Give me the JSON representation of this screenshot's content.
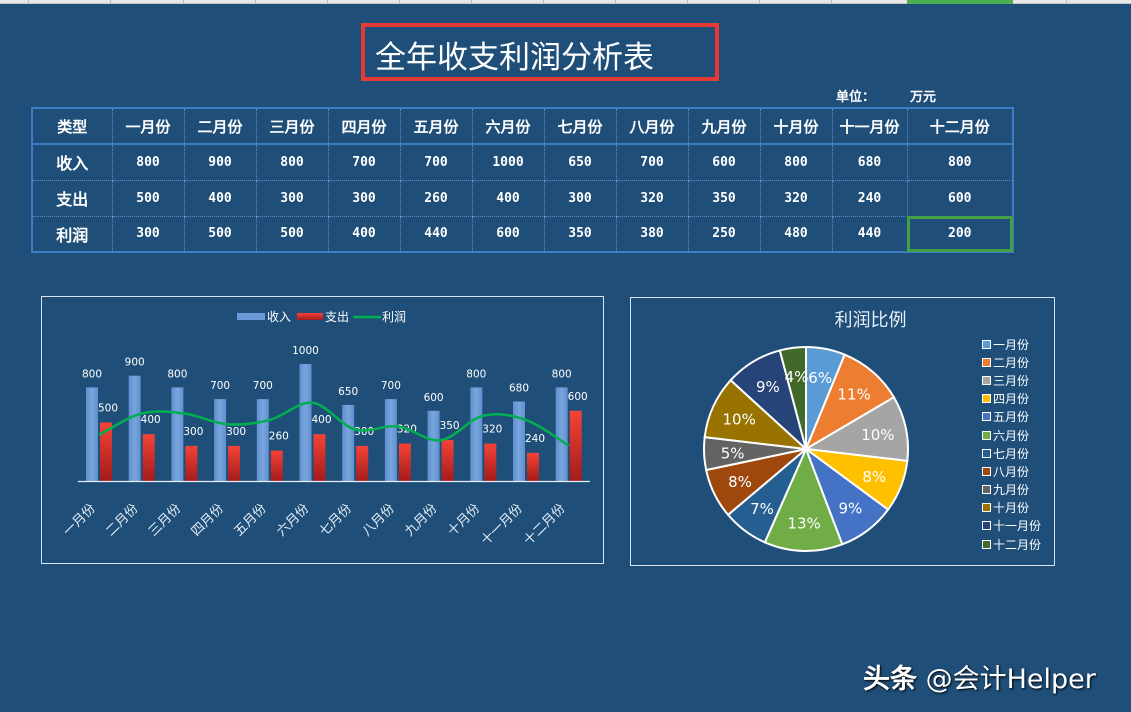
{
  "page": {
    "title": "全年收支利润分析表",
    "unit_label": "单位：",
    "unit_value": "万元",
    "watermark_brand": "头条",
    "watermark_handle": "@会计Helper"
  },
  "table": {
    "header": [
      "类型",
      "一月份",
      "二月份",
      "三月份",
      "四月份",
      "五月份",
      "六月份",
      "七月份",
      "八月份",
      "九月份",
      "十月份",
      "十一月份",
      "十二月份"
    ],
    "rows": [
      {
        "label": "收入",
        "values": [
          "800",
          "900",
          "800",
          "700",
          "700",
          "1000",
          "650",
          "700",
          "600",
          "800",
          "680",
          "800"
        ]
      },
      {
        "label": "支出",
        "values": [
          "500",
          "400",
          "300",
          "300",
          "260",
          "400",
          "300",
          "320",
          "350",
          "320",
          "240",
          "600"
        ]
      },
      {
        "label": "利润",
        "values": [
          "300",
          "500",
          "500",
          "400",
          "440",
          "600",
          "350",
          "380",
          "250",
          "480",
          "440",
          "200"
        ]
      }
    ],
    "active_cell": "利润-十二月份"
  },
  "colors": {
    "background": "#1f4e79",
    "income_bar": "#6a9bd8",
    "expense_bar": "#e53935",
    "profit_line": "#00b050",
    "title_border": "#e53935",
    "selection": "#43a047"
  },
  "chart_data": [
    {
      "type": "bar",
      "title": "",
      "categories": [
        "一月份",
        "二月份",
        "三月份",
        "四月份",
        "五月份",
        "六月份",
        "七月份",
        "八月份",
        "九月份",
        "十月份",
        "十一月份",
        "十二月份"
      ],
      "series": [
        {
          "name": "收入",
          "type": "bar",
          "values": [
            800,
            900,
            800,
            700,
            700,
            1000,
            650,
            700,
            600,
            800,
            680,
            800
          ]
        },
        {
          "name": "支出",
          "type": "bar",
          "values": [
            500,
            400,
            300,
            300,
            260,
            400,
            300,
            320,
            350,
            320,
            240,
            600
          ]
        },
        {
          "name": "利润",
          "type": "line",
          "smooth": true,
          "values": [
            300,
            500,
            500,
            400,
            440,
            600,
            350,
            380,
            250,
            480,
            440,
            200
          ]
        }
      ],
      "legend": [
        "收入",
        "支出",
        "利润"
      ],
      "legend_position": "top",
      "data_labels": true,
      "xlabel": "",
      "ylabel": "",
      "grid": false,
      "x_tick_rotation": -45
    },
    {
      "type": "pie",
      "title": "利润比例",
      "categories": [
        "一月份",
        "二月份",
        "三月份",
        "四月份",
        "五月份",
        "六月份",
        "七月份",
        "八月份",
        "九月份",
        "十月份",
        "十一月份",
        "十二月份"
      ],
      "values": [
        300,
        500,
        500,
        400,
        440,
        600,
        350,
        380,
        250,
        480,
        440,
        200
      ],
      "labels": [
        "6%",
        "11%",
        "10%",
        "8%",
        "9%",
        "13%",
        "7%",
        "8%",
        "5%",
        "10%",
        "9%",
        "4%"
      ],
      "colors": [
        "#5b9bd5",
        "#ed7d31",
        "#a5a5a5",
        "#ffc000",
        "#4472c4",
        "#70ad47",
        "#255e91",
        "#9e480e",
        "#636363",
        "#997300",
        "#264478",
        "#43682b"
      ],
      "legend_position": "right"
    }
  ]
}
